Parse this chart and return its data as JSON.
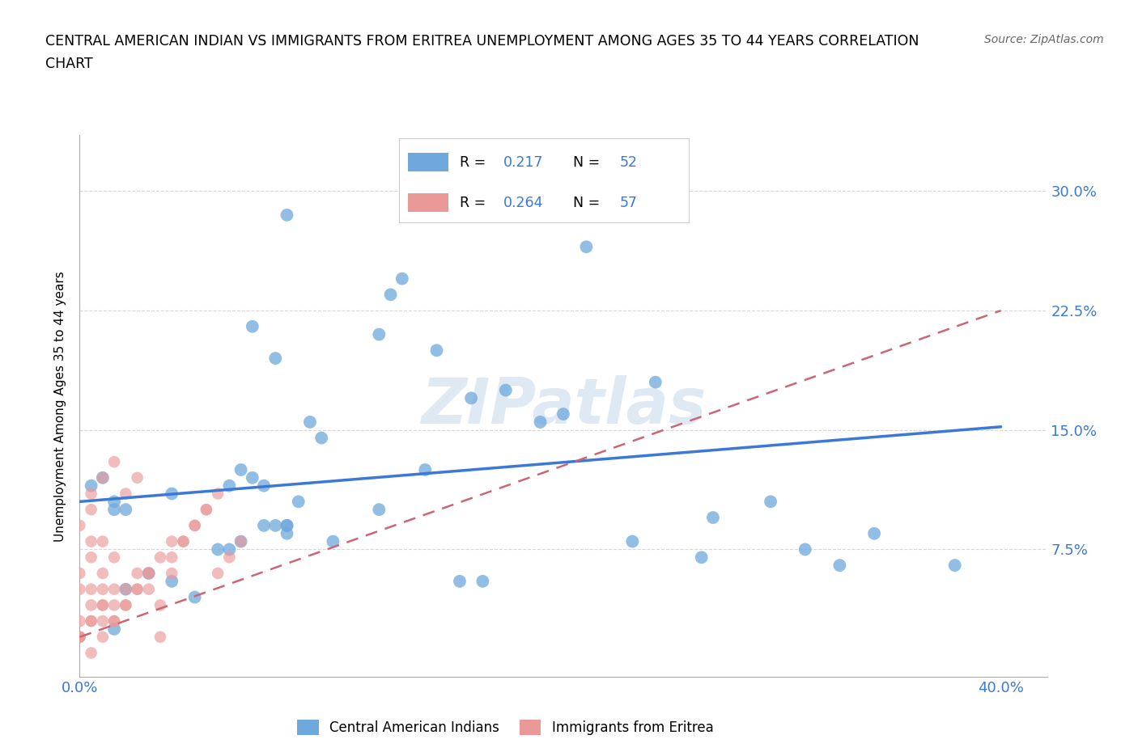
{
  "title_line1": "CENTRAL AMERICAN INDIAN VS IMMIGRANTS FROM ERITREA UNEMPLOYMENT AMONG AGES 35 TO 44 YEARS CORRELATION",
  "title_line2": "CHART",
  "source": "Source: ZipAtlas.com",
  "ylabel": "Unemployment Among Ages 35 to 44 years",
  "xlim": [
    0.0,
    0.42
  ],
  "ylim": [
    -0.005,
    0.335
  ],
  "yticks": [
    0.0,
    0.075,
    0.15,
    0.225,
    0.3
  ],
  "ytick_labels": [
    "",
    "7.5%",
    "15.0%",
    "22.5%",
    "30.0%"
  ],
  "xticks": [
    0.0,
    0.1,
    0.2,
    0.3,
    0.4
  ],
  "xtick_labels": [
    "0.0%",
    "",
    "",
    "",
    "40.0%"
  ],
  "grid_color": "#cccccc",
  "blue_color": "#6fa8dc",
  "pink_color": "#ea9999",
  "blue_line_color": "#3c78d8",
  "pink_line_color": "#cc6677",
  "R_blue": 0.217,
  "N_blue": 52,
  "R_pink": 0.264,
  "N_pink": 57,
  "blue_trend_x0": 0.0,
  "blue_trend_x1": 0.4,
  "blue_trend_y0": 0.105,
  "blue_trend_y1": 0.152,
  "pink_trend_x0": 0.0,
  "pink_trend_x1": 0.4,
  "pink_trend_y0": 0.02,
  "pink_trend_y1": 0.225,
  "blue_x": [
    0.09,
    0.085,
    0.13,
    0.135,
    0.155,
    0.14,
    0.005,
    0.01,
    0.015,
    0.02,
    0.015,
    0.04,
    0.065,
    0.07,
    0.075,
    0.08,
    0.065,
    0.085,
    0.09,
    0.095,
    0.1,
    0.105,
    0.075,
    0.2,
    0.22,
    0.185,
    0.25,
    0.3,
    0.345,
    0.38,
    0.275,
    0.315,
    0.165,
    0.175,
    0.08,
    0.09,
    0.06,
    0.04,
    0.02,
    0.03,
    0.015,
    0.05,
    0.07,
    0.09,
    0.11,
    0.13,
    0.15,
    0.17,
    0.21,
    0.24,
    0.27,
    0.33
  ],
  "blue_y": [
    0.285,
    0.195,
    0.21,
    0.235,
    0.2,
    0.245,
    0.115,
    0.12,
    0.105,
    0.1,
    0.1,
    0.11,
    0.115,
    0.125,
    0.12,
    0.115,
    0.075,
    0.09,
    0.09,
    0.105,
    0.155,
    0.145,
    0.215,
    0.155,
    0.265,
    0.175,
    0.18,
    0.105,
    0.085,
    0.065,
    0.095,
    0.075,
    0.055,
    0.055,
    0.09,
    0.09,
    0.075,
    0.055,
    0.05,
    0.06,
    0.025,
    0.045,
    0.08,
    0.085,
    0.08,
    0.1,
    0.125,
    0.17,
    0.16,
    0.08,
    0.07,
    0.065
  ],
  "pink_x": [
    0.0,
    0.005,
    0.01,
    0.0,
    0.005,
    0.0,
    0.01,
    0.015,
    0.005,
    0.0,
    0.005,
    0.01,
    0.0,
    0.005,
    0.015,
    0.02,
    0.025,
    0.03,
    0.01,
    0.015,
    0.035,
    0.04,
    0.02,
    0.025,
    0.005,
    0.01,
    0.015,
    0.0,
    0.005,
    0.01,
    0.02,
    0.03,
    0.035,
    0.045,
    0.05,
    0.055,
    0.06,
    0.025,
    0.04,
    0.015,
    0.01,
    0.005,
    0.0,
    0.005,
    0.01,
    0.015,
    0.02,
    0.025,
    0.03,
    0.035,
    0.04,
    0.045,
    0.05,
    0.055,
    0.06,
    0.065,
    0.07
  ],
  "pink_y": [
    0.05,
    0.04,
    0.03,
    0.06,
    0.07,
    0.02,
    0.05,
    0.04,
    0.08,
    0.09,
    0.1,
    0.06,
    0.03,
    0.05,
    0.07,
    0.04,
    0.06,
    0.05,
    0.08,
    0.03,
    0.04,
    0.06,
    0.11,
    0.12,
    0.11,
    0.12,
    0.13,
    0.02,
    0.03,
    0.04,
    0.05,
    0.06,
    0.07,
    0.08,
    0.09,
    0.1,
    0.11,
    0.05,
    0.08,
    0.05,
    0.04,
    0.03,
    0.02,
    0.01,
    0.02,
    0.03,
    0.04,
    0.05,
    0.06,
    0.02,
    0.07,
    0.08,
    0.09,
    0.1,
    0.06,
    0.07,
    0.08
  ],
  "legend_blue_label": "Central American Indians",
  "legend_pink_label": "Immigrants from Eritrea",
  "tick_color": "#3c78d8",
  "background_color": "#ffffff"
}
